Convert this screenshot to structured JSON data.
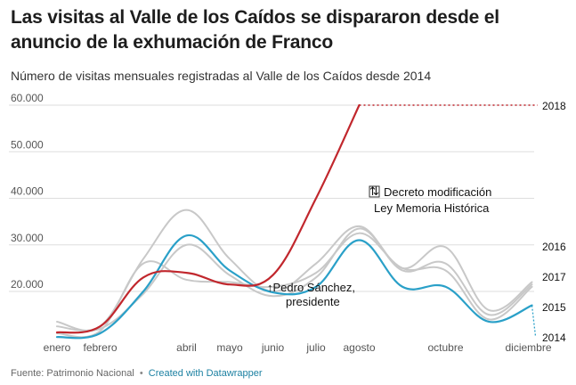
{
  "title": "Las visitas al Valle de los Caídos se dispararon desde el anuncio de la exhumación de Franco",
  "subtitle": "Número de visitas mensuales registradas al Valle de los Caídos desde 2014",
  "footer": {
    "source": "Fuente: Patrimonio Nacional",
    "separator": "•",
    "credit": "Created with Datawrapper"
  },
  "colors": {
    "highlight_2018": "#c1272d",
    "highlight_2015": "#2aa0c8",
    "context_series": "#c8c8c8",
    "grid": "#dddddd"
  },
  "chart_data": {
    "type": "line",
    "x_tick_labels": [
      "enero",
      "febrero",
      "",
      "abril",
      "mayo",
      "junio",
      "julio",
      "agosto",
      "",
      "octubre",
      "",
      "diciembre"
    ],
    "y_ticks": [
      20000,
      30000,
      40000,
      50000,
      60000
    ],
    "y_tick_labels": [
      "20.000",
      "30.000",
      "40.000",
      "50.000",
      "60.000"
    ],
    "ylim": [
      10000,
      61000
    ],
    "grid": true,
    "series": [
      {
        "name": "2016",
        "color": "#c8c8c8",
        "values": [
          13500,
          12500,
          27000,
          37500,
          27000,
          20000,
          26000,
          34000,
          25000,
          29500,
          16000,
          22000
        ]
      },
      {
        "name": "2017",
        "color": "#c8c8c8",
        "values": [
          12500,
          12000,
          19500,
          30000,
          23500,
          19000,
          23000,
          33500,
          24500,
          26000,
          15000,
          21500
        ]
      },
      {
        "name": "",
        "color": "#c8c8c8",
        "values": [
          11000,
          11500,
          26000,
          22500,
          22000,
          21000,
          24000,
          32500,
          25000,
          24500,
          14000,
          21000
        ]
      },
      {
        "name": "2015",
        "color": "#2aa0c8",
        "values": [
          10200,
          11000,
          20000,
          32000,
          24500,
          19800,
          21000,
          31000,
          21000,
          21000,
          13500,
          17000
        ]
      },
      {
        "name": "2018",
        "color": "#c1272d",
        "values": [
          11200,
          12500,
          23000,
          24000,
          21500,
          23500,
          40000,
          60000
        ]
      }
    ],
    "projection_2018": {
      "from_value": 60000,
      "to_value": 60000
    },
    "projection_2014": {
      "from_value": 17000,
      "to_value": 10000
    },
    "end_labels": [
      "2018",
      "2016",
      "2017",
      "2015",
      "2014"
    ],
    "annotations": [
      {
        "icon": "↑",
        "lines": [
          "Pedro Sánchez,",
          "presidente"
        ]
      },
      {
        "icon": "⇅",
        "lines": [
          "Decreto modificación",
          "Ley Memoria Histórica"
        ]
      }
    ]
  }
}
